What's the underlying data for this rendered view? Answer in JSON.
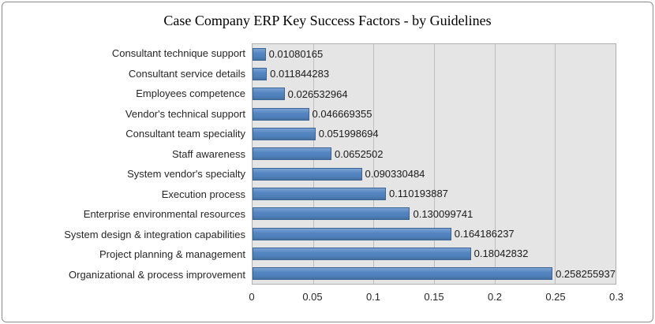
{
  "chart_data": {
    "type": "bar",
    "orientation": "horizontal",
    "title": "Case Company ERP Key Success Factors - by Guidelines",
    "categories": [
      "Consultant technique support",
      "Consultant service details",
      "Employees competence",
      "Vendor's technical support",
      "Consultant team speciality",
      "Staff awareness",
      "System vendor's specialty",
      "Execution process",
      "Enterprise environmental resources",
      "System design & integration capabilities",
      "Project planning & management",
      "Organizational & process improvement"
    ],
    "values": [
      0.01080165,
      0.011844283,
      0.026532964,
      0.046669355,
      0.051998694,
      0.0652502,
      0.090330484,
      0.110193887,
      0.130099741,
      0.164186237,
      0.18042832,
      0.258255937
    ],
    "value_labels": [
      "0.01080165",
      "0.011844283",
      "0.026532964",
      "0.046669355",
      "0.051998694",
      "0.0652502",
      "0.090330484",
      "0.110193887",
      "0.130099741",
      "0.164186237",
      "0.18042832",
      "0.258255937"
    ],
    "xlabel": "",
    "ylabel": "",
    "xlim": [
      0,
      0.3
    ],
    "x_ticks": [
      0,
      0.05,
      0.1,
      0.15,
      0.2,
      0.25,
      0.3
    ],
    "x_tick_labels": [
      "0",
      "0.05",
      "0.1",
      "0.15",
      "0.2",
      "0.25",
      "0.3"
    ],
    "grid": "vertical",
    "legend": "none",
    "bar_color": "#4f81bd",
    "bar_border_color": "#3c6595",
    "plot_background": "#e5e5e5",
    "frame_border_color": "#8c8c8c"
  }
}
